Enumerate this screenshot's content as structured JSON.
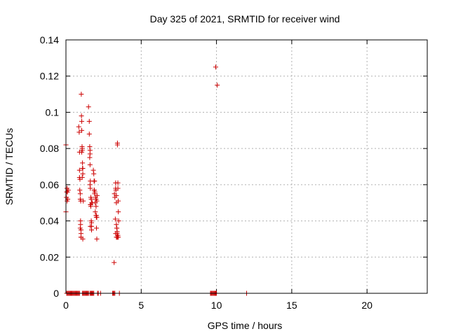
{
  "chart_data": {
    "type": "scatter",
    "title": "Day 325 of 2021, SRMTID for receiver wind",
    "xlabel": "GPS time / hours",
    "ylabel": "SRMTID / TECUs",
    "xlim": [
      0,
      24
    ],
    "ylim": [
      0,
      0.14
    ],
    "xticks": [
      0,
      5,
      10,
      15,
      20
    ],
    "yticks": [
      0,
      0.02,
      0.04,
      0.06,
      0.08,
      0.1,
      0.12,
      0.14
    ],
    "ytick_labels": [
      "0",
      "0.02",
      "0.04",
      "0.06",
      "0.08",
      "0.1",
      "0.12",
      "0.14"
    ],
    "grid": true,
    "marker": "+",
    "color": "#cc0000",
    "series": [
      {
        "x": [
          0.0,
          0.0,
          0.03,
          0.05,
          0.07,
          0.08,
          0.1,
          0.12,
          0.15,
          0.85,
          0.88,
          0.9,
          0.92,
          0.95,
          0.97,
          1.0,
          1.0,
          1.02,
          1.03,
          1.05,
          1.05,
          1.07,
          1.08,
          1.08,
          1.1,
          1.12,
          0.9,
          0.9,
          0.93,
          0.95,
          0.97,
          1.0,
          1.0,
          0.98,
          0.95,
          1.05,
          1.08,
          1.1,
          1.12,
          1.15,
          1.12,
          1.5,
          1.55,
          1.55,
          1.58,
          1.6,
          1.6,
          1.62,
          1.62,
          1.65,
          1.65,
          1.68,
          1.7,
          1.7,
          1.6,
          1.58,
          1.6,
          1.62,
          1.65,
          1.68,
          1.7,
          1.72,
          1.75,
          1.62,
          1.82,
          1.85,
          1.87,
          1.88,
          1.9,
          1.92,
          1.95,
          1.97,
          2.0,
          2.0,
          2.02,
          2.03,
          2.05,
          2.05,
          2.07,
          1.88,
          1.9,
          1.95,
          2.0,
          2.02,
          2.05,
          3.2,
          3.22,
          3.25,
          3.28,
          3.3,
          3.3,
          3.32,
          3.35,
          3.35,
          3.38,
          3.4,
          3.4,
          3.42,
          3.42,
          3.45,
          3.45,
          3.47,
          3.48,
          3.5,
          3.3,
          3.35,
          3.38,
          3.4,
          3.42,
          3.45,
          3.48,
          3.35,
          3.4,
          9.95,
          10.05
        ],
        "y": [
          0.082,
          0.045,
          0.053,
          0.056,
          0.058,
          0.051,
          0.056,
          0.052,
          0.057,
          0.092,
          0.089,
          0.078,
          0.057,
          0.055,
          0.038,
          0.035,
          0.031,
          0.11,
          0.098,
          0.095,
          0.09,
          0.081,
          0.079,
          0.08,
          0.072,
          0.069,
          0.068,
          0.064,
          0.063,
          0.052,
          0.04,
          0.033,
          0.031,
          0.051,
          0.036,
          0.078,
          0.064,
          0.069,
          0.066,
          0.051,
          0.03,
          0.103,
          0.095,
          0.088,
          0.081,
          0.077,
          0.071,
          0.062,
          0.058,
          0.053,
          0.049,
          0.04,
          0.037,
          0.035,
          0.079,
          0.075,
          0.06,
          0.049,
          0.048,
          0.052,
          0.039,
          0.05,
          0.05,
          0.037,
          0.068,
          0.066,
          0.062,
          0.057,
          0.055,
          0.056,
          0.05,
          0.053,
          0.052,
          0.043,
          0.042,
          0.036,
          0.03,
          0.051,
          0.054,
          0.057,
          0.062,
          0.045,
          0.048,
          0.043,
          0.042,
          0.017,
          0.055,
          0.053,
          0.041,
          0.061,
          0.058,
          0.057,
          0.054,
          0.05,
          0.036,
          0.033,
          0.031,
          0.082,
          0.083,
          0.061,
          0.058,
          0.051,
          0.045,
          0.04,
          0.033,
          0.031,
          0.036,
          0.034,
          0.031,
          0.032,
          0.031,
          0.038,
          0.034,
          0.125,
          0.115
        ]
      }
    ],
    "zero_band_x": [
      0.05,
      0.1,
      0.15,
      0.2,
      0.25,
      0.3,
      0.35,
      0.4,
      0.45,
      0.5,
      0.55,
      0.6,
      0.65,
      0.7,
      0.75,
      0.8,
      0.85,
      0.9,
      1.1,
      1.15,
      1.2,
      1.25,
      1.3,
      1.35,
      1.4,
      1.45,
      1.5,
      1.6,
      1.65,
      1.7,
      1.75,
      1.8,
      1.85,
      2.1,
      2.15,
      2.3,
      3.1,
      3.15,
      3.2,
      3.25,
      3.55,
      9.6,
      9.65,
      9.7,
      9.75,
      9.8,
      9.85,
      9.9,
      9.95,
      10.0,
      12.0
    ]
  }
}
